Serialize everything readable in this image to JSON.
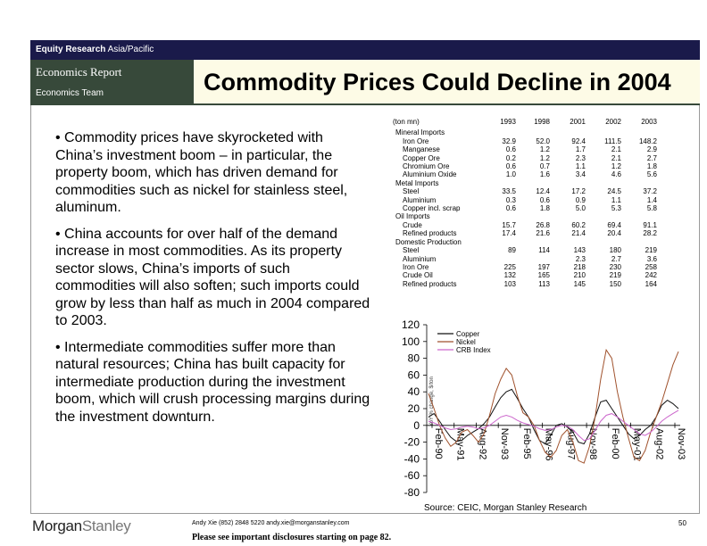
{
  "header": {
    "section": "Equity Research",
    "region": "Asia/Pacific",
    "report": "Economics Report",
    "team": "Economics Team",
    "title": "Commodity Prices Could Decline in 2004"
  },
  "bullets": [
    "• Commodity prices have skyrocketed with China’s investment boom – in particular, the property boom, which has driven demand for commodities such as nickel for stainless steel, aluminum.",
    "• China accounts for over half of the demand increase in most commodities.  As its property sector slows, China’s imports of such commodities will also soften; such imports could grow by less than half as much in 2004 compared to 2003.",
    "• Intermediate commodities suffer more than natural resources; China has built capacity for intermediate production during the investment boom, which will crush processing margins during the investment downturn."
  ],
  "table": {
    "unit": "(ton mn)",
    "years": [
      "1993",
      "1998",
      "2001",
      "2002",
      "2003"
    ],
    "rows": [
      {
        "label": "Mineral Imports",
        "indent": false,
        "values": [
          "",
          "",
          "",
          "",
          ""
        ]
      },
      {
        "label": "Iron Ore",
        "indent": true,
        "values": [
          "32.9",
          "52.0",
          "92.4",
          "111.5",
          "148.2"
        ]
      },
      {
        "label": "Manganese",
        "indent": true,
        "values": [
          "0.6",
          "1.2",
          "1.7",
          "2.1",
          "2.9"
        ]
      },
      {
        "label": "Copper Ore",
        "indent": true,
        "values": [
          "0.2",
          "1.2",
          "2.3",
          "2.1",
          "2.7"
        ]
      },
      {
        "label": "Chromium Ore",
        "indent": true,
        "values": [
          "0.6",
          "0.7",
          "1.1",
          "1.2",
          "1.8"
        ]
      },
      {
        "label": "Aluminium Oxide",
        "indent": true,
        "values": [
          "1.0",
          "1.6",
          "3.4",
          "4.6",
          "5.6"
        ]
      },
      {
        "label": "Metal Imports",
        "indent": false,
        "values": [
          "",
          "",
          "",
          "",
          ""
        ]
      },
      {
        "label": "Steel",
        "indent": true,
        "values": [
          "33.5",
          "12.4",
          "17.2",
          "24.5",
          "37.2"
        ]
      },
      {
        "label": "Aluminium",
        "indent": true,
        "values": [
          "0.3",
          "0.6",
          "0.9",
          "1.1",
          "1.4"
        ]
      },
      {
        "label": "Copper incl. scrap",
        "indent": true,
        "values": [
          "0.6",
          "1.8",
          "5.0",
          "5.3",
          "5.8"
        ]
      },
      {
        "label": "Oil Imports",
        "indent": false,
        "values": [
          "",
          "",
          "",
          "",
          ""
        ]
      },
      {
        "label": "Crude",
        "indent": true,
        "values": [
          "15.7",
          "26.8",
          "60.2",
          "69.4",
          "91.1"
        ]
      },
      {
        "label": "Refined products",
        "indent": true,
        "values": [
          "17.4",
          "21.6",
          "21.4",
          "20.4",
          "28.2"
        ]
      },
      {
        "label": "Domestic Production",
        "indent": false,
        "values": [
          "",
          "",
          "",
          "",
          ""
        ]
      },
      {
        "label": "Steel",
        "indent": true,
        "values": [
          "89",
          "114",
          "143",
          "180",
          "219"
        ]
      },
      {
        "label": "Aluminium",
        "indent": true,
        "values": [
          "",
          "",
          "2.3",
          "2.7",
          "3.6"
        ]
      },
      {
        "label": "Iron Ore",
        "indent": true,
        "values": [
          "225",
          "197",
          "218",
          "230",
          "258"
        ]
      },
      {
        "label": "Crude Oil",
        "indent": true,
        "values": [
          "132",
          "165",
          "210",
          "219",
          "242"
        ]
      },
      {
        "label": "Refined products",
        "indent": true,
        "values": [
          "103",
          "113",
          "145",
          "150",
          "164"
        ]
      }
    ]
  },
  "chart_data": {
    "type": "line",
    "ylabel": "YoY % change, $/ton",
    "ylim": [
      -80,
      120
    ],
    "yticks": [
      -80,
      -60,
      -40,
      -20,
      0,
      20,
      40,
      60,
      80,
      100,
      120
    ],
    "xticks": [
      "Feb-90",
      "May-91",
      "Aug-92",
      "Nov-93",
      "Feb-95",
      "May-96",
      "Aug-97",
      "Nov-98",
      "Feb-00",
      "May-01",
      "Aug-02",
      "Nov-03"
    ],
    "legend_position": "top-left",
    "series": [
      {
        "name": "Copper",
        "color": "#111111",
        "values": [
          10,
          14,
          5,
          -5,
          -14,
          -19,
          -18,
          -12,
          -8,
          -4,
          2,
          10,
          22,
          33,
          40,
          43,
          32,
          20,
          10,
          -5,
          -18,
          -22,
          -12,
          0,
          2,
          -2,
          -8,
          -20,
          -22,
          -10,
          10,
          28,
          30,
          20,
          10,
          0,
          -10,
          -16,
          -12,
          -5,
          0,
          10,
          24,
          30,
          26,
          20
        ]
      },
      {
        "name": "Nickel",
        "color": "#a0522d",
        "values": [
          38,
          20,
          0,
          -15,
          -25,
          -20,
          -8,
          -5,
          -12,
          -20,
          -10,
          12,
          38,
          55,
          68,
          60,
          35,
          15,
          10,
          0,
          -18,
          -32,
          -38,
          -30,
          -12,
          -5,
          -20,
          -42,
          -45,
          -25,
          10,
          55,
          90,
          80,
          40,
          10,
          -15,
          -38,
          -42,
          -30,
          -8,
          10,
          28,
          50,
          72,
          88
        ]
      },
      {
        "name": "CRB Index",
        "color": "#cc66cc",
        "values": [
          5,
          3,
          0,
          -3,
          -5,
          -4,
          -2,
          -1,
          -2,
          -4,
          -3,
          0,
          5,
          10,
          12,
          10,
          6,
          3,
          1,
          -1,
          -4,
          -6,
          -5,
          -2,
          0,
          -1,
          -5,
          -12,
          -18,
          -16,
          -6,
          5,
          12,
          14,
          10,
          5,
          0,
          -5,
          -10,
          -12,
          -8,
          -2,
          5,
          10,
          14,
          18
        ]
      }
    ]
  },
  "source": "Source: CEIC, Morgan Stanley Research",
  "footer": {
    "logo_morgan": "Morgan",
    "logo_stanley": "Stanley",
    "contact": "Andy Xie (852) 2848 5220  andy.xie@morganstanley.com",
    "disclosure": "Please see important disclosures starting on page 82.",
    "page": "50"
  }
}
